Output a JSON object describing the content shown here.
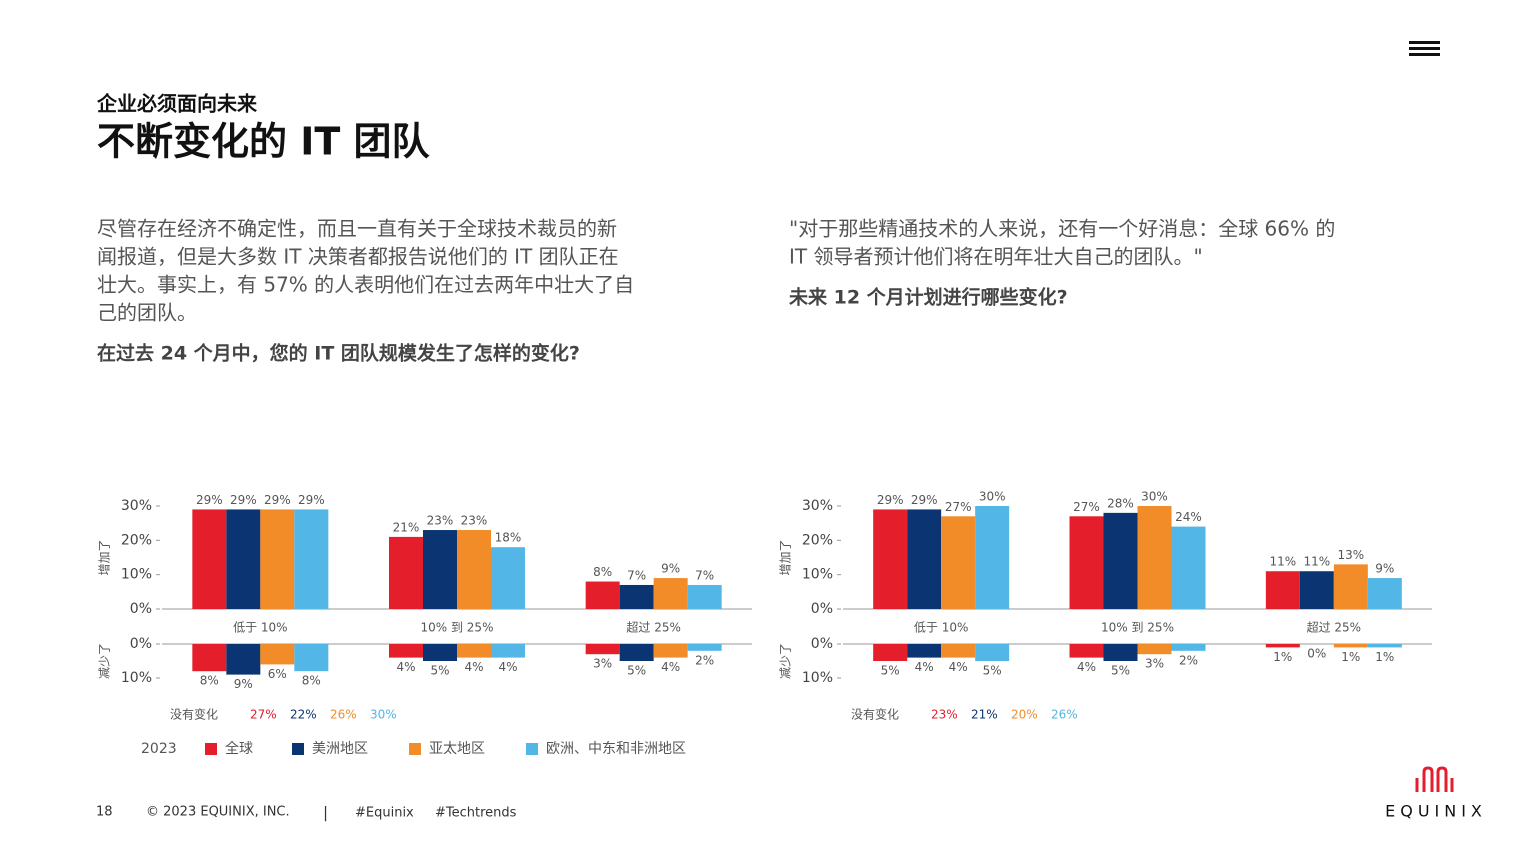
{
  "header": {
    "kicker": "企业必须面向未来",
    "title": "不断变化的 IT 团队"
  },
  "left": {
    "paragraph_lines": [
      "尽管存在经济不确定性，而且一直有关于全球技术裁员的新",
      "闻报道，但是大多数 IT 决策者都报告说他们的 IT 团队正在",
      "壮大。事实上，有 57% 的人表明他们在过去两年中壮大了自",
      "己的团队。"
    ],
    "question": "在过去 24 个月中，您的 IT 团队规模发生了怎样的变化?"
  },
  "right": {
    "quote_lines": [
      "\"对于那些精通技术的人来说，还有一个好消息：全球 66% 的",
      "IT 领导者预计他们将在明年壮大自己的团队。\""
    ],
    "question": "未来 12 个月计划进行哪些变化?"
  },
  "chart_data": [
    {
      "type": "bar",
      "categories": [
        "低于 10%",
        "10% 到 25%",
        "超过 25%"
      ],
      "panels": [
        {
          "label": "增加了",
          "ylim": [
            0,
            30
          ],
          "yticks": [
            {
              "value": 0,
              "label": "0%"
            },
            {
              "value": 10,
              "label": "10%"
            },
            {
              "value": 20,
              "label": "20%"
            },
            {
              "value": 30,
              "label": "30%"
            }
          ],
          "series": [
            {
              "values": [
                29,
                21,
                8
              ],
              "value_labels": [
                "29%",
                "21%",
                "8%"
              ]
            },
            {
              "values": [
                29,
                23,
                7
              ],
              "value_labels": [
                "29%",
                "23%",
                "7%"
              ]
            },
            {
              "values": [
                29,
                23,
                9
              ],
              "value_labels": [
                "29%",
                "23%",
                "9%"
              ]
            },
            {
              "values": [
                29,
                18,
                7
              ],
              "value_labels": [
                "29%",
                "18%",
                "7%"
              ]
            }
          ]
        },
        {
          "label": "减少了",
          "inverted": true,
          "ylim": [
            0,
            10
          ],
          "yticks": [
            {
              "value": 0,
              "label": "0%"
            },
            {
              "value": 10,
              "label": "10%"
            }
          ],
          "series": [
            {
              "values": [
                8,
                4,
                3
              ],
              "value_labels": [
                "8%",
                "4%",
                "3%"
              ]
            },
            {
              "values": [
                9,
                5,
                5
              ],
              "value_labels": [
                "9%",
                "5%",
                "5%"
              ]
            },
            {
              "values": [
                6,
                4,
                4
              ],
              "value_labels": [
                "6%",
                "4%",
                "4%"
              ]
            },
            {
              "values": [
                8,
                4,
                2
              ],
              "value_labels": [
                "8%",
                "4%",
                "2%"
              ]
            }
          ]
        }
      ],
      "no_change": {
        "label": "没有变化",
        "values": [
          27,
          22,
          26,
          30
        ],
        "value_labels": [
          "27%",
          "22%",
          "26%",
          "30%"
        ]
      }
    },
    {
      "type": "bar",
      "categories": [
        "低于 10%",
        "10% 到 25%",
        "超过 25%"
      ],
      "panels": [
        {
          "label": "增加了",
          "ylim": [
            0,
            30
          ],
          "yticks": [
            {
              "value": 0,
              "label": "0%"
            },
            {
              "value": 10,
              "label": "10%"
            },
            {
              "value": 20,
              "label": "20%"
            },
            {
              "value": 30,
              "label": "30%"
            }
          ],
          "series": [
            {
              "values": [
                29,
                27,
                11
              ],
              "value_labels": [
                "29%",
                "27%",
                "11%"
              ]
            },
            {
              "values": [
                29,
                28,
                11
              ],
              "value_labels": [
                "29%",
                "28%",
                "11%"
              ]
            },
            {
              "values": [
                27,
                30,
                13
              ],
              "value_labels": [
                "27%",
                "30%",
                "13%"
              ]
            },
            {
              "values": [
                30,
                24,
                9
              ],
              "value_labels": [
                "30%",
                "24%",
                "9%"
              ]
            }
          ]
        },
        {
          "label": "减少了",
          "inverted": true,
          "ylim": [
            0,
            10
          ],
          "yticks": [
            {
              "value": 0,
              "label": "0%"
            },
            {
              "value": 10,
              "label": "10%"
            }
          ],
          "series": [
            {
              "values": [
                5,
                4,
                1
              ],
              "value_labels": [
                "5%",
                "4%",
                "1%"
              ]
            },
            {
              "values": [
                4,
                5,
                0
              ],
              "value_labels": [
                "4%",
                "5%",
                "0%"
              ]
            },
            {
              "values": [
                4,
                3,
                1
              ],
              "value_labels": [
                "4%",
                "3%",
                "1%"
              ]
            },
            {
              "values": [
                5,
                2,
                1
              ],
              "value_labels": [
                "5%",
                "2%",
                "1%"
              ]
            }
          ]
        }
      ],
      "no_change": {
        "label": "没有变化",
        "values": [
          23,
          21,
          20,
          26
        ],
        "value_labels": [
          "23%",
          "21%",
          "20%",
          "26%"
        ]
      }
    }
  ],
  "legend": {
    "title": "2023",
    "series": [
      {
        "name": "全球",
        "color": "#e41e2b"
      },
      {
        "name": "美洲地区",
        "color": "#0b3572"
      },
      {
        "name": "亚太地区",
        "color": "#f28c28"
      },
      {
        "name": "欧洲、中东和非洲地区",
        "color": "#52b6e6"
      }
    ]
  },
  "footer": {
    "page": "18",
    "copyright": "© 2023 EQUINIX, INC.",
    "separator": "|",
    "tags": [
      "#Equinix",
      "#Techtrends"
    ],
    "logo": "EQUINIX"
  }
}
